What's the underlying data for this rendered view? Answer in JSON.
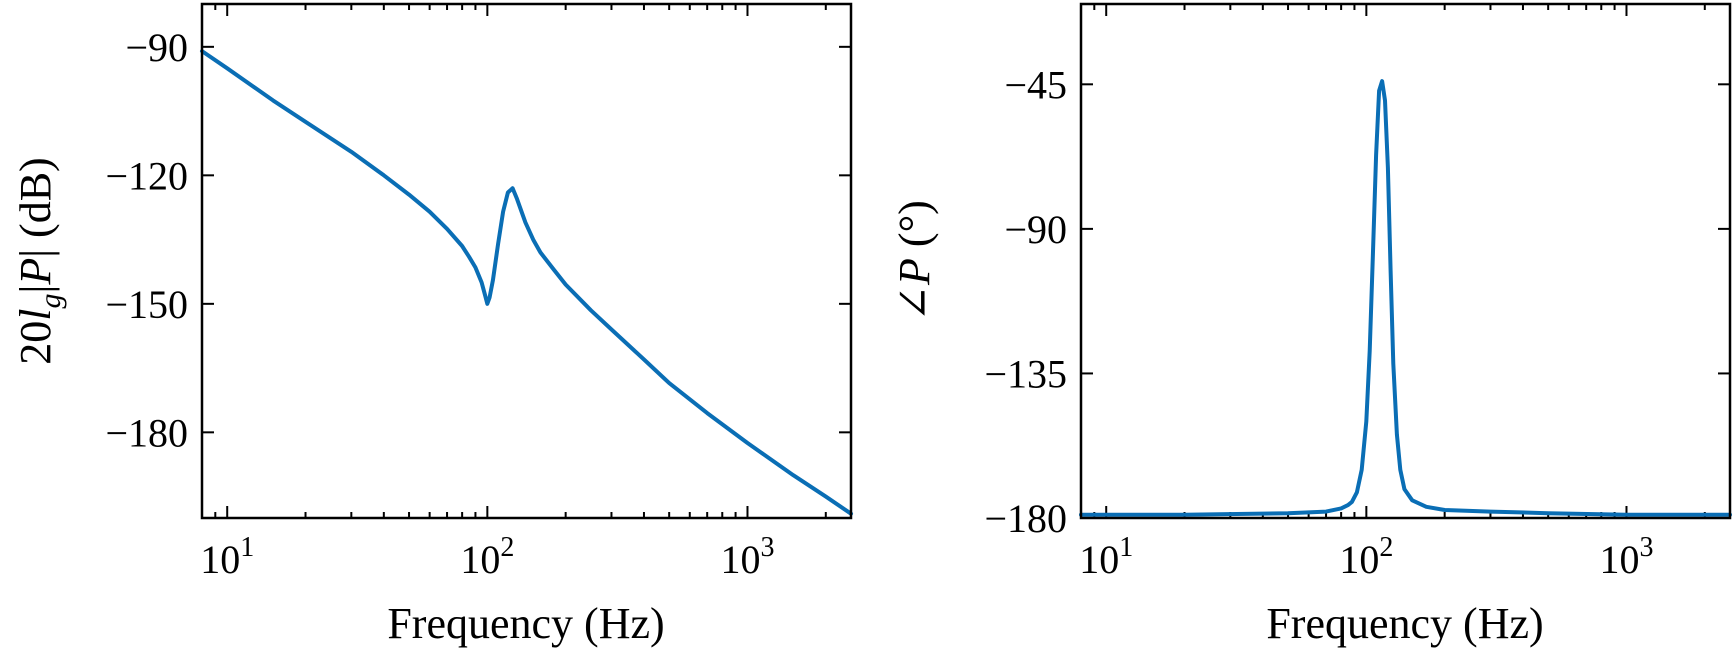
{
  "colors": {
    "series": "#0a6eb5",
    "axis": "#000000",
    "background": "#ffffff"
  },
  "chart_data": [
    {
      "type": "line",
      "title": "",
      "xlabel": "Frequency (Hz)",
      "ylabel": "20lg|P| (dB)",
      "ylabel_parts": {
        "prefix": "20",
        "l": "l",
        "g": "g",
        "abs_open": "|",
        "P": "P",
        "abs_close": "|",
        "unit": " (dB)"
      },
      "xscale": "log",
      "xlim": [
        8,
        2500
      ],
      "ylim": [
        -200,
        -80
      ],
      "grid": false,
      "x_ticks": [
        {
          "value": 10,
          "base": "10",
          "exp": "1"
        },
        {
          "value": 100,
          "base": "10",
          "exp": "2"
        },
        {
          "value": 1000,
          "base": "10",
          "exp": "3"
        }
      ],
      "y_ticks": [
        {
          "value": -90,
          "label": "−90"
        },
        {
          "value": -120,
          "label": "−120"
        },
        {
          "value": -150,
          "label": "−150"
        },
        {
          "value": -180,
          "label": "−180"
        }
      ],
      "series": [
        {
          "x": [
            8,
            10,
            15,
            20,
            30,
            40,
            50,
            60,
            70,
            80,
            85,
            90,
            95,
            98,
            100,
            102,
            105,
            110,
            115,
            120,
            125,
            130,
            140,
            150,
            160,
            180,
            200,
            250,
            300,
            400,
            500,
            700,
            1000,
            1500,
            2000,
            2500
          ],
          "y": [
            -91,
            -95,
            -102.5,
            -107.5,
            -114.5,
            -120,
            -124.5,
            -128.5,
            -132.5,
            -136.5,
            -139,
            -141.5,
            -145,
            -148,
            -150,
            -148.5,
            -144.5,
            -136,
            -128.5,
            -124,
            -123,
            -125.5,
            -131,
            -135,
            -138,
            -142,
            -145.5,
            -151.5,
            -156,
            -163,
            -168.5,
            -175.5,
            -182.5,
            -190,
            -195,
            -199
          ]
        }
      ]
    },
    {
      "type": "line",
      "title": "",
      "xlabel": "Frequency (Hz)",
      "ylabel": "∠P (°)",
      "ylabel_parts": {
        "angle": "∠",
        "P": "P",
        "unit": " (°)"
      },
      "xscale": "log",
      "xlim": [
        8,
        2500
      ],
      "ylim": [
        -180,
        -20
      ],
      "grid": false,
      "x_ticks": [
        {
          "value": 10,
          "base": "10",
          "exp": "1"
        },
        {
          "value": 100,
          "base": "10",
          "exp": "2"
        },
        {
          "value": 1000,
          "base": "10",
          "exp": "3"
        }
      ],
      "y_ticks": [
        {
          "value": -45,
          "label": "−45"
        },
        {
          "value": -90,
          "label": "−90"
        },
        {
          "value": -135,
          "label": "−135"
        },
        {
          "value": -180,
          "label": "−180"
        }
      ],
      "series": [
        {
          "x": [
            8,
            20,
            50,
            70,
            80,
            85,
            88,
            92,
            96,
            100,
            103,
            106,
            109,
            112,
            115,
            118,
            121,
            124,
            127,
            131,
            135,
            140,
            150,
            170,
            200,
            300,
            500,
            1000,
            2500
          ],
          "y": [
            -179,
            -179,
            -178.5,
            -178,
            -177,
            -176,
            -175,
            -172,
            -165,
            -150,
            -128,
            -98,
            -67,
            -47,
            -44,
            -50,
            -71,
            -103,
            -132,
            -154,
            -165,
            -171,
            -174.5,
            -176.5,
            -177.5,
            -178,
            -178.5,
            -179,
            -179
          ]
        }
      ]
    }
  ]
}
